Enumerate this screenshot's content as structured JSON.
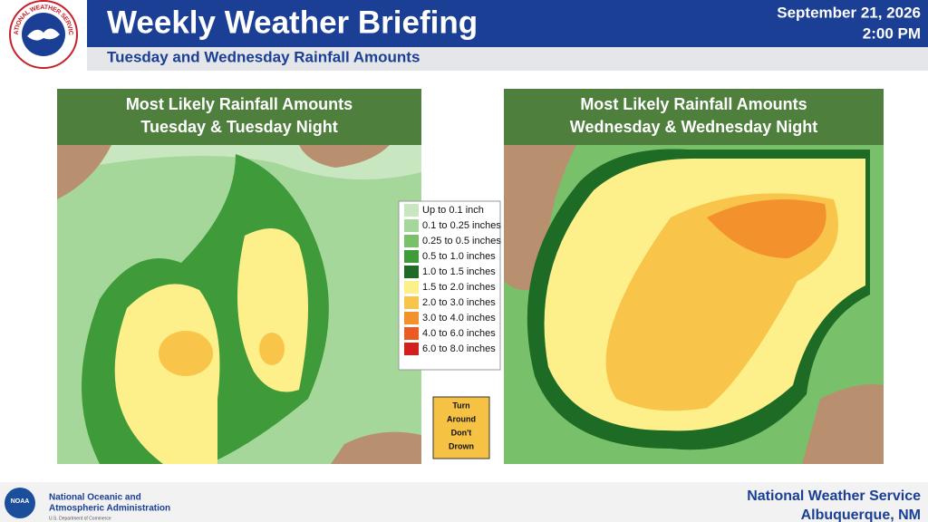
{
  "header": {
    "title": "Weekly Weather Briefing",
    "subtitle": "Tuesday and Wednesday Rainfall Amounts",
    "date": "September 21, 2026",
    "time": "2:00 PM",
    "logo_text": "NATIONAL WEATHER SERVICE"
  },
  "maps": [
    {
      "title_lines": [
        "Most Likely Rainfall Amounts",
        "Tuesday & Tuesday Night"
      ]
    },
    {
      "title_lines": [
        "Most Likely Rainfall Amounts",
        "Wednesday & Wednesday Night"
      ]
    }
  ],
  "legend": [
    {
      "label": "Up to 0.1 inch",
      "color": "#c8e6c0"
    },
    {
      "label": "0.1 to 0.25 inches",
      "color": "#a6d79a"
    },
    {
      "label": "0.25 to 0.5 inches",
      "color": "#78c06a"
    },
    {
      "label": "0.5 to 1.0 inches",
      "color": "#3f9a3a"
    },
    {
      "label": "1.0 to 1.5 inches",
      "color": "#1e6b26"
    },
    {
      "label": "1.5 to 2.0 inches",
      "color": "#fdf08a"
    },
    {
      "label": "2.0 to 3.0 inches",
      "color": "#f8c54a"
    },
    {
      "label": "3.0 to 4.0 inches",
      "color": "#f3912c"
    },
    {
      "label": "4.0 to 6.0 inches",
      "color": "#ec5a24"
    },
    {
      "label": "6.0 to 8.0 inches",
      "color": "#d41f1f"
    }
  ],
  "sign": {
    "lines": [
      "Turn",
      "Around",
      "Don't",
      "Drown"
    ]
  },
  "footer": {
    "noaa_logo": "NOAA",
    "agency_lines": [
      "National Oceanic and",
      "Atmospheric Administration"
    ],
    "department": "U.S. Department of Commerce",
    "office_lines": [
      "National Weather Service",
      "Albuquerque, NM"
    ]
  }
}
